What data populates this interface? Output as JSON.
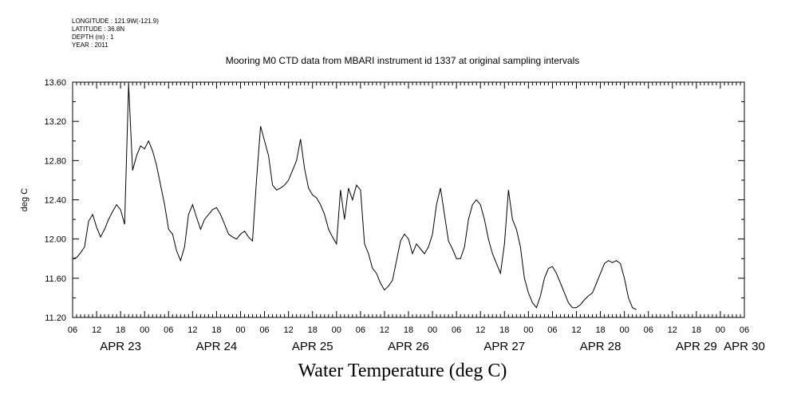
{
  "meta": {
    "lines": [
      "LONGITUDE : 121.9W(-121.9)",
      "LATITUDE : 36.8N",
      "DEPTH (m) : 1",
      "YEAR : 2011"
    ]
  },
  "plot_title": "Mooring M0 CTD data from MBARI instrument id 1337 at original sampling intervals",
  "main_title": "Water Temperature (deg C)",
  "chart_data": {
    "type": "line",
    "title": "Mooring M0 CTD data from MBARI instrument id 1337 at original sampling intervals",
    "xlabel": "",
    "ylabel": "deg C",
    "ylim": [
      11.2,
      13.6
    ],
    "xlim_hours": [
      0,
      168
    ],
    "y_ticks": [
      "11.20",
      "11.60",
      "12.00",
      "12.40",
      "12.80",
      "13.20",
      "13.60"
    ],
    "x_hour_labels": [
      "06",
      "12",
      "18",
      "00",
      "06",
      "12",
      "18",
      "00",
      "06",
      "12",
      "18",
      "00",
      "06",
      "12",
      "18",
      "00",
      "06",
      "12",
      "18",
      "00",
      "06",
      "12",
      "18",
      "00",
      "06",
      "12",
      "18",
      "00",
      "06"
    ],
    "x_day_labels": [
      "APR 23",
      "APR 24",
      "APR 25",
      "APR 26",
      "APR 27",
      "APR 28",
      "APR 29",
      "APR 30"
    ],
    "grid": false,
    "series": [
      {
        "values": [
          [
            0,
            11.8
          ],
          [
            1,
            11.81
          ],
          [
            2,
            11.86
          ],
          [
            3,
            11.92
          ],
          [
            4,
            12.18
          ],
          [
            5,
            12.25
          ],
          [
            6,
            12.12
          ],
          [
            7,
            12.02
          ],
          [
            8,
            12.1
          ],
          [
            9,
            12.2
          ],
          [
            10,
            12.28
          ],
          [
            11,
            12.35
          ],
          [
            12,
            12.3
          ],
          [
            13,
            12.15
          ],
          [
            14,
            13.58
          ],
          [
            15,
            12.7
          ],
          [
            16,
            12.85
          ],
          [
            17,
            12.95
          ],
          [
            18,
            12.92
          ],
          [
            19,
            13.0
          ],
          [
            20,
            12.9
          ],
          [
            21,
            12.75
          ],
          [
            22,
            12.55
          ],
          [
            23,
            12.35
          ],
          [
            24,
            12.1
          ],
          [
            25,
            12.05
          ],
          [
            26,
            11.88
          ],
          [
            27,
            11.78
          ],
          [
            28,
            11.92
          ],
          [
            29,
            12.25
          ],
          [
            30,
            12.35
          ],
          [
            31,
            12.22
          ],
          [
            32,
            12.1
          ],
          [
            33,
            12.2
          ],
          [
            34,
            12.25
          ],
          [
            35,
            12.3
          ],
          [
            36,
            12.32
          ],
          [
            37,
            12.25
          ],
          [
            38,
            12.15
          ],
          [
            39,
            12.05
          ],
          [
            40,
            12.02
          ],
          [
            41,
            12.0
          ],
          [
            42,
            12.05
          ],
          [
            43,
            12.08
          ],
          [
            44,
            12.02
          ],
          [
            45,
            11.98
          ],
          [
            46,
            12.6
          ],
          [
            47,
            13.15
          ],
          [
            48,
            13.0
          ],
          [
            49,
            12.85
          ],
          [
            50,
            12.55
          ],
          [
            51,
            12.5
          ],
          [
            52,
            12.52
          ],
          [
            53,
            12.55
          ],
          [
            54,
            12.6
          ],
          [
            55,
            12.7
          ],
          [
            56,
            12.8
          ],
          [
            57,
            13.02
          ],
          [
            58,
            12.72
          ],
          [
            59,
            12.52
          ],
          [
            60,
            12.45
          ],
          [
            61,
            12.42
          ],
          [
            62,
            12.35
          ],
          [
            63,
            12.25
          ],
          [
            64,
            12.1
          ],
          [
            65,
            12.02
          ],
          [
            66,
            11.95
          ],
          [
            67,
            12.5
          ],
          [
            68,
            12.2
          ],
          [
            69,
            12.52
          ],
          [
            70,
            12.4
          ],
          [
            71,
            12.55
          ],
          [
            72,
            12.5
          ],
          [
            73,
            11.95
          ],
          [
            74,
            11.85
          ],
          [
            75,
            11.7
          ],
          [
            76,
            11.65
          ],
          [
            77,
            11.55
          ],
          [
            78,
            11.48
          ],
          [
            79,
            11.52
          ],
          [
            80,
            11.58
          ],
          [
            81,
            11.78
          ],
          [
            82,
            11.98
          ],
          [
            83,
            12.05
          ],
          [
            84,
            12.0
          ],
          [
            85,
            11.85
          ],
          [
            86,
            11.95
          ],
          [
            87,
            11.9
          ],
          [
            88,
            11.85
          ],
          [
            89,
            11.92
          ],
          [
            90,
            12.05
          ],
          [
            91,
            12.35
          ],
          [
            92,
            12.52
          ],
          [
            93,
            12.25
          ],
          [
            94,
            11.98
          ],
          [
            95,
            11.9
          ],
          [
            96,
            11.8
          ],
          [
            97,
            11.8
          ],
          [
            98,
            11.92
          ],
          [
            99,
            12.2
          ],
          [
            100,
            12.35
          ],
          [
            101,
            12.4
          ],
          [
            102,
            12.35
          ],
          [
            103,
            12.2
          ],
          [
            104,
            12.0
          ],
          [
            105,
            11.85
          ],
          [
            106,
            11.75
          ],
          [
            107,
            11.65
          ],
          [
            108,
            11.95
          ],
          [
            109,
            12.5
          ],
          [
            110,
            12.2
          ],
          [
            111,
            12.1
          ],
          [
            112,
            11.92
          ],
          [
            113,
            11.6
          ],
          [
            114,
            11.45
          ],
          [
            115,
            11.35
          ],
          [
            116,
            11.3
          ],
          [
            117,
            11.42
          ],
          [
            118,
            11.6
          ],
          [
            119,
            11.7
          ],
          [
            120,
            11.72
          ],
          [
            121,
            11.65
          ],
          [
            122,
            11.55
          ],
          [
            123,
            11.45
          ],
          [
            124,
            11.35
          ],
          [
            125,
            11.3
          ],
          [
            126,
            11.3
          ],
          [
            127,
            11.33
          ],
          [
            128,
            11.38
          ],
          [
            129,
            11.42
          ],
          [
            130,
            11.45
          ],
          [
            131,
            11.55
          ],
          [
            132,
            11.65
          ],
          [
            133,
            11.75
          ],
          [
            134,
            11.78
          ],
          [
            135,
            11.76
          ],
          [
            136,
            11.78
          ],
          [
            137,
            11.75
          ],
          [
            138,
            11.6
          ],
          [
            139,
            11.4
          ],
          [
            140,
            11.3
          ],
          [
            141,
            11.28
          ]
        ]
      }
    ]
  }
}
